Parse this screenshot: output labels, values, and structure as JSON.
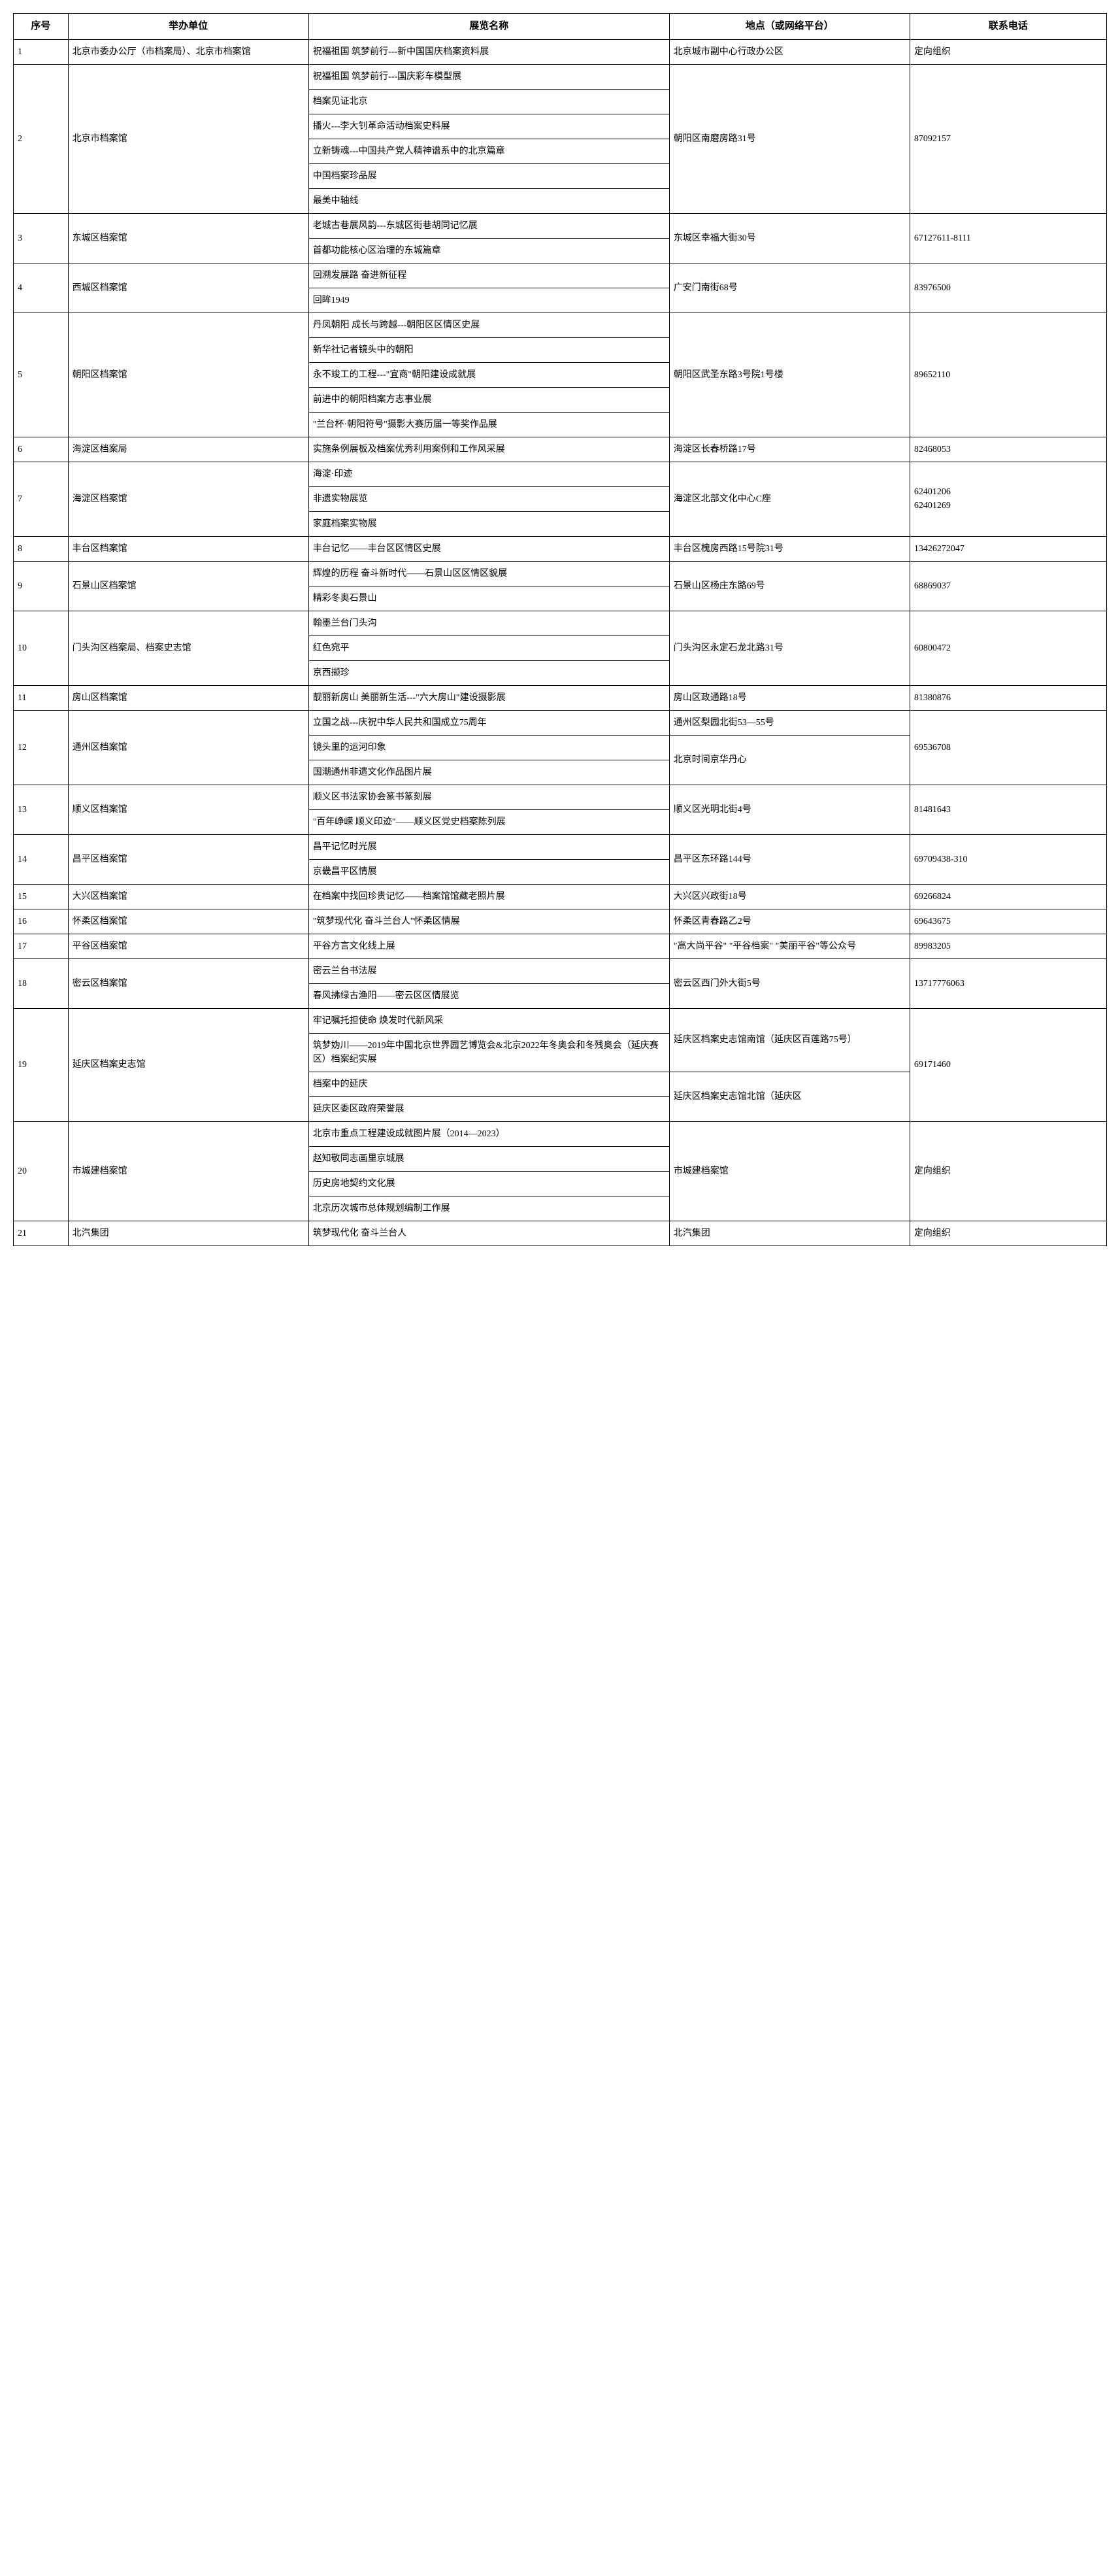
{
  "headers": {
    "seq": "序号",
    "organizer": "举办单位",
    "exhibition": "展览名称",
    "location": "地点（或网络平台）",
    "phone": "联系电话"
  },
  "rows": [
    {
      "seq": "1",
      "org": "北京市委办公厅（市档案局）、北京市档案馆",
      "exhibits": [
        "祝福祖国 筑梦前行---新中国国庆档案资料展"
      ],
      "loc": "北京城市副中心行政办公区",
      "phone": "定向组织"
    },
    {
      "seq": "2",
      "org": "北京市档案馆",
      "exhibits": [
        "祝福祖国 筑梦前行---国庆彩车模型展",
        "档案见证北京",
        "播火---李大钊革命活动档案史料展",
        "立新铸魂---中国共产党人精神谱系中的北京篇章",
        "中国档案珍品展",
        "最美中轴线"
      ],
      "loc": "朝阳区南磨房路31号",
      "phone": "87092157"
    },
    {
      "seq": "3",
      "org": "东城区档案馆",
      "exhibits": [
        "老城古巷展风韵---东城区街巷胡同记忆展",
        "首都功能核心区治理的东城篇章"
      ],
      "loc": "东城区幸福大街30号",
      "phone": "67127611-8111"
    },
    {
      "seq": "4",
      "org": "西城区档案馆",
      "exhibits": [
        "回溯发展路 奋进新征程",
        "回眸1949"
      ],
      "loc": "广安门南街68号",
      "phone": "83976500"
    },
    {
      "seq": "5",
      "org": "朝阳区档案馆",
      "exhibits": [
        "丹凤朝阳 成长与跨越---朝阳区区情区史展",
        "新华社记者镜头中的朝阳",
        "永不竣工的工程---\"宜商\"朝阳建设成就展",
        "前进中的朝阳档案方志事业展",
        "\"兰台杯·朝阳符号\"摄影大赛历届一等奖作品展"
      ],
      "loc": "朝阳区武圣东路3号院1号楼",
      "phone": "89652110"
    },
    {
      "seq": "6",
      "org": "海淀区档案局",
      "exhibits": [
        "实施条例展板及档案优秀利用案例和工作风采展"
      ],
      "loc": "海淀区长春桥路17号",
      "phone": "82468053"
    },
    {
      "seq": "7",
      "org": "海淀区档案馆",
      "exhibits": [
        "海淀·印迹",
        "非遗实物展览",
        "家庭档案实物展"
      ],
      "loc": "海淀区北部文化中心C座",
      "phone": "62401206\n62401269"
    },
    {
      "seq": "8",
      "org": "丰台区档案馆",
      "exhibits": [
        "丰台记忆——丰台区区情区史展"
      ],
      "loc": "丰台区槐房西路15号院31号",
      "phone": "13426272047"
    },
    {
      "seq": "9",
      "org": "石景山区档案馆",
      "exhibits": [
        "辉煌的历程 奋斗新时代——石景山区区情区貌展",
        "精彩冬奥石景山"
      ],
      "loc": "石景山区杨庄东路69号",
      "phone": "68869037"
    },
    {
      "seq": "10",
      "org": "门头沟区档案局、档案史志馆",
      "exhibits": [
        "翰墨兰台门头沟",
        "红色宛平",
        "京西撷珍"
      ],
      "loc": "门头沟区永定石龙北路31号",
      "phone": "60800472"
    },
    {
      "seq": "11",
      "org": "房山区档案馆",
      "exhibits": [
        "靓丽新房山 美丽新生活---\"六大房山\"建设摄影展"
      ],
      "loc": "房山区政通路18号",
      "phone": "81380876"
    },
    {
      "seq": "12",
      "org": "通州区档案馆",
      "locs": [
        "通州区梨园北街53—55号",
        "北京时间京华丹心"
      ],
      "exhibits": [
        "立国之战---庆祝中华人民共和国成立75周年",
        "镜头里的运河印象",
        "国潮通州非遗文化作品图片展"
      ],
      "phone": "69536708"
    },
    {
      "seq": "13",
      "org": "顺义区档案馆",
      "exhibits": [
        "顺义区书法家协会篆书篆刻展",
        "\"百年峥嵘 顺义印迹\"——顺义区党史档案陈列展"
      ],
      "loc": "顺义区光明北街4号",
      "phone": "81481643"
    },
    {
      "seq": "14",
      "org": "昌平区档案馆",
      "exhibits": [
        "昌平记忆时光展",
        "京畿昌平区情展"
      ],
      "loc": "昌平区东环路144号",
      "phone": "69709438-310"
    },
    {
      "seq": "15",
      "org": "大兴区档案馆",
      "exhibits": [
        "在档案中找回珍贵记忆——档案馆馆藏老照片展"
      ],
      "loc": "大兴区兴政街18号",
      "phone": "69266824"
    },
    {
      "seq": "16",
      "org": "怀柔区档案馆",
      "exhibits": [
        "\"筑梦现代化 奋斗兰台人\"怀柔区情展"
      ],
      "loc": "怀柔区青春路乙2号",
      "phone": "69643675"
    },
    {
      "seq": "17",
      "org": "平谷区档案馆",
      "exhibits": [
        "平谷方言文化线上展"
      ],
      "loc": "\"高大尚平谷\" \"平谷档案\" \"美丽平谷\"等公众号",
      "phone": "89983205"
    },
    {
      "seq": "18",
      "org": "密云区档案馆",
      "exhibits": [
        "密云兰台书法展",
        "春风拂绿古渔阳——密云区区情展览"
      ],
      "loc": "密云区西门外大街5号",
      "phone": "13717776063"
    },
    {
      "seq": "19",
      "org": "延庆区档案史志馆",
      "locs": [
        "延庆区档案史志馆南馆（延庆区百莲路75号）",
        "延庆区档案史志馆北馆（延庆区"
      ],
      "exhibits": [
        "牢记嘱托担使命 焕发时代新风采",
        "筑梦妫川——2019年中国北京世界园艺博览会&北京2022年冬奥会和冬残奥会（延庆赛区）档案纪实展",
        "档案中的延庆",
        "延庆区委区政府荣誉展"
      ],
      "phone": "69171460"
    },
    {
      "seq": "20",
      "org": "市城建档案馆",
      "exhibits": [
        "北京市重点工程建设成就图片展（2014—2023）",
        "赵知敬同志画里京城展",
        "历史房地契约文化展",
        "北京历次城市总体规划编制工作展"
      ],
      "loc": "市城建档案馆",
      "phone": "定向组织"
    },
    {
      "seq": "21",
      "org": "北汽集团",
      "exhibits": [
        "筑梦现代化 奋斗兰台人"
      ],
      "loc": "北汽集团",
      "phone": "定向组织"
    }
  ]
}
